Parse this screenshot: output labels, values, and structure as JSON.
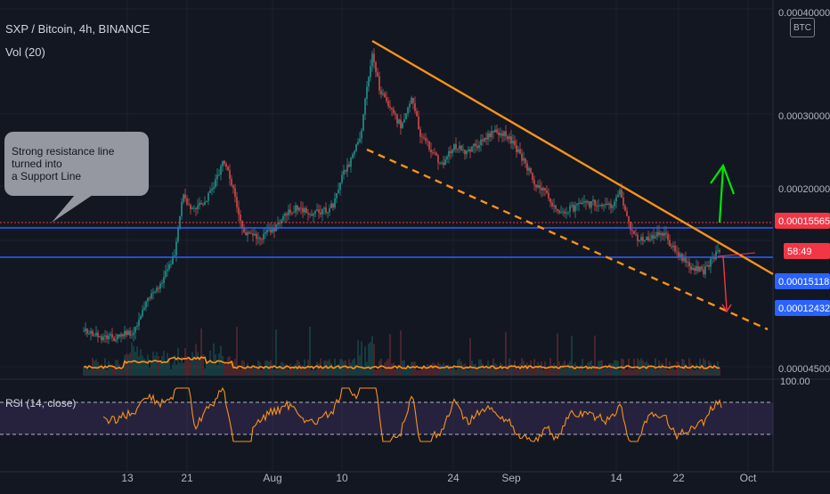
{
  "legend": {
    "symbol": "SXP / Bitcoin, 4h, BINANCE",
    "volume": "Vol (20)"
  },
  "currency_badge": "BTC",
  "annotation": {
    "text_line1": "Strong resistance line turned into",
    "text_line2": "a Support Line"
  },
  "rsi": {
    "label": "RSI (14, close)",
    "top_value": "100.00"
  },
  "colors": {
    "background": "#131722",
    "grid": "#1e222d",
    "up": "#26a69a",
    "down": "#ef5350",
    "trendline": "#f7931a",
    "support": "#2962ff",
    "green_arrow": "#00e600",
    "red_arrow": "#f23645",
    "rsi_line": "#f7931a",
    "rsi_band": "#7e57c2",
    "price_tag_red": "#f23645",
    "price_tag_blue": "#2962ff"
  },
  "chart_data": {
    "type": "candlestick",
    "price_axis_labels": [
      "0.00040000",
      "0.00030000",
      "0.00020000",
      "0.00015565",
      "0.00015118",
      "0.00012432",
      "0.00004500"
    ],
    "time_axis_labels": [
      "13",
      "21",
      "Aug",
      "10",
      "24",
      "Sep",
      "14",
      "22",
      "Oct"
    ],
    "price_tags": [
      {
        "value": "0.00015565",
        "style": "red"
      },
      {
        "value": "58:49",
        "style": "red"
      },
      {
        "value": "0.00015118",
        "style": "blue"
      },
      {
        "value": "0.00012432",
        "style": "blue"
      }
    ],
    "horizontal_lines": [
      0.00015118,
      0.00014
    ],
    "current_price": 0.00015565,
    "ylim": [
      5e-05,
      0.0004
    ],
    "rsi_levels": [
      30,
      70
    ]
  }
}
